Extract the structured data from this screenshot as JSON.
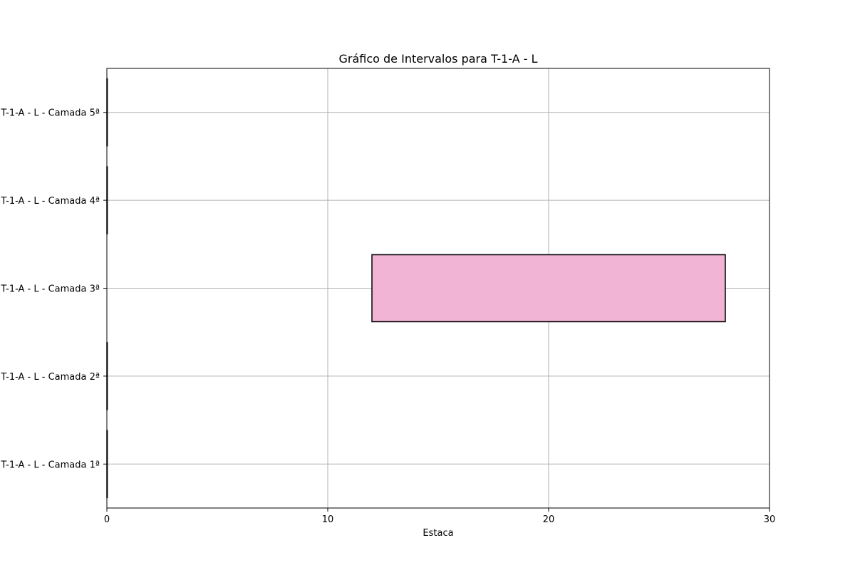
{
  "chart_data": {
    "type": "bar",
    "orientation": "horizontal-interval",
    "title": "Gráfico de Intervalos para T-1-A  - L",
    "xlabel": "Estaca",
    "ylabel": "",
    "xlim": [
      0,
      30
    ],
    "xticks": [
      0,
      10,
      20,
      30
    ],
    "grid": true,
    "categories": [
      "T-1-A  - L - Camada 1ª",
      "T-1-A  - L - Camada 2ª",
      "T-1-A  - L - Camada 3ª",
      "T-1-A  - L - Camada 4ª",
      "T-1-A  - L - Camada 5ª"
    ],
    "intervals": [
      {
        "category": "T-1-A  - L - Camada 1ª",
        "start": 0,
        "end": 0
      },
      {
        "category": "T-1-A  - L - Camada 2ª",
        "start": 0,
        "end": 0
      },
      {
        "category": "T-1-A  - L - Camada 3ª",
        "start": 12,
        "end": 28
      },
      {
        "category": "T-1-A  - L - Camada 4ª",
        "start": 0,
        "end": 0
      },
      {
        "category": "T-1-A  - L - Camada 5ª",
        "start": 0,
        "end": 0
      }
    ],
    "colors": {
      "bar_fill": "#f1b4d4",
      "bar_edge": "#000000",
      "grid": "#b0b0b0"
    }
  }
}
